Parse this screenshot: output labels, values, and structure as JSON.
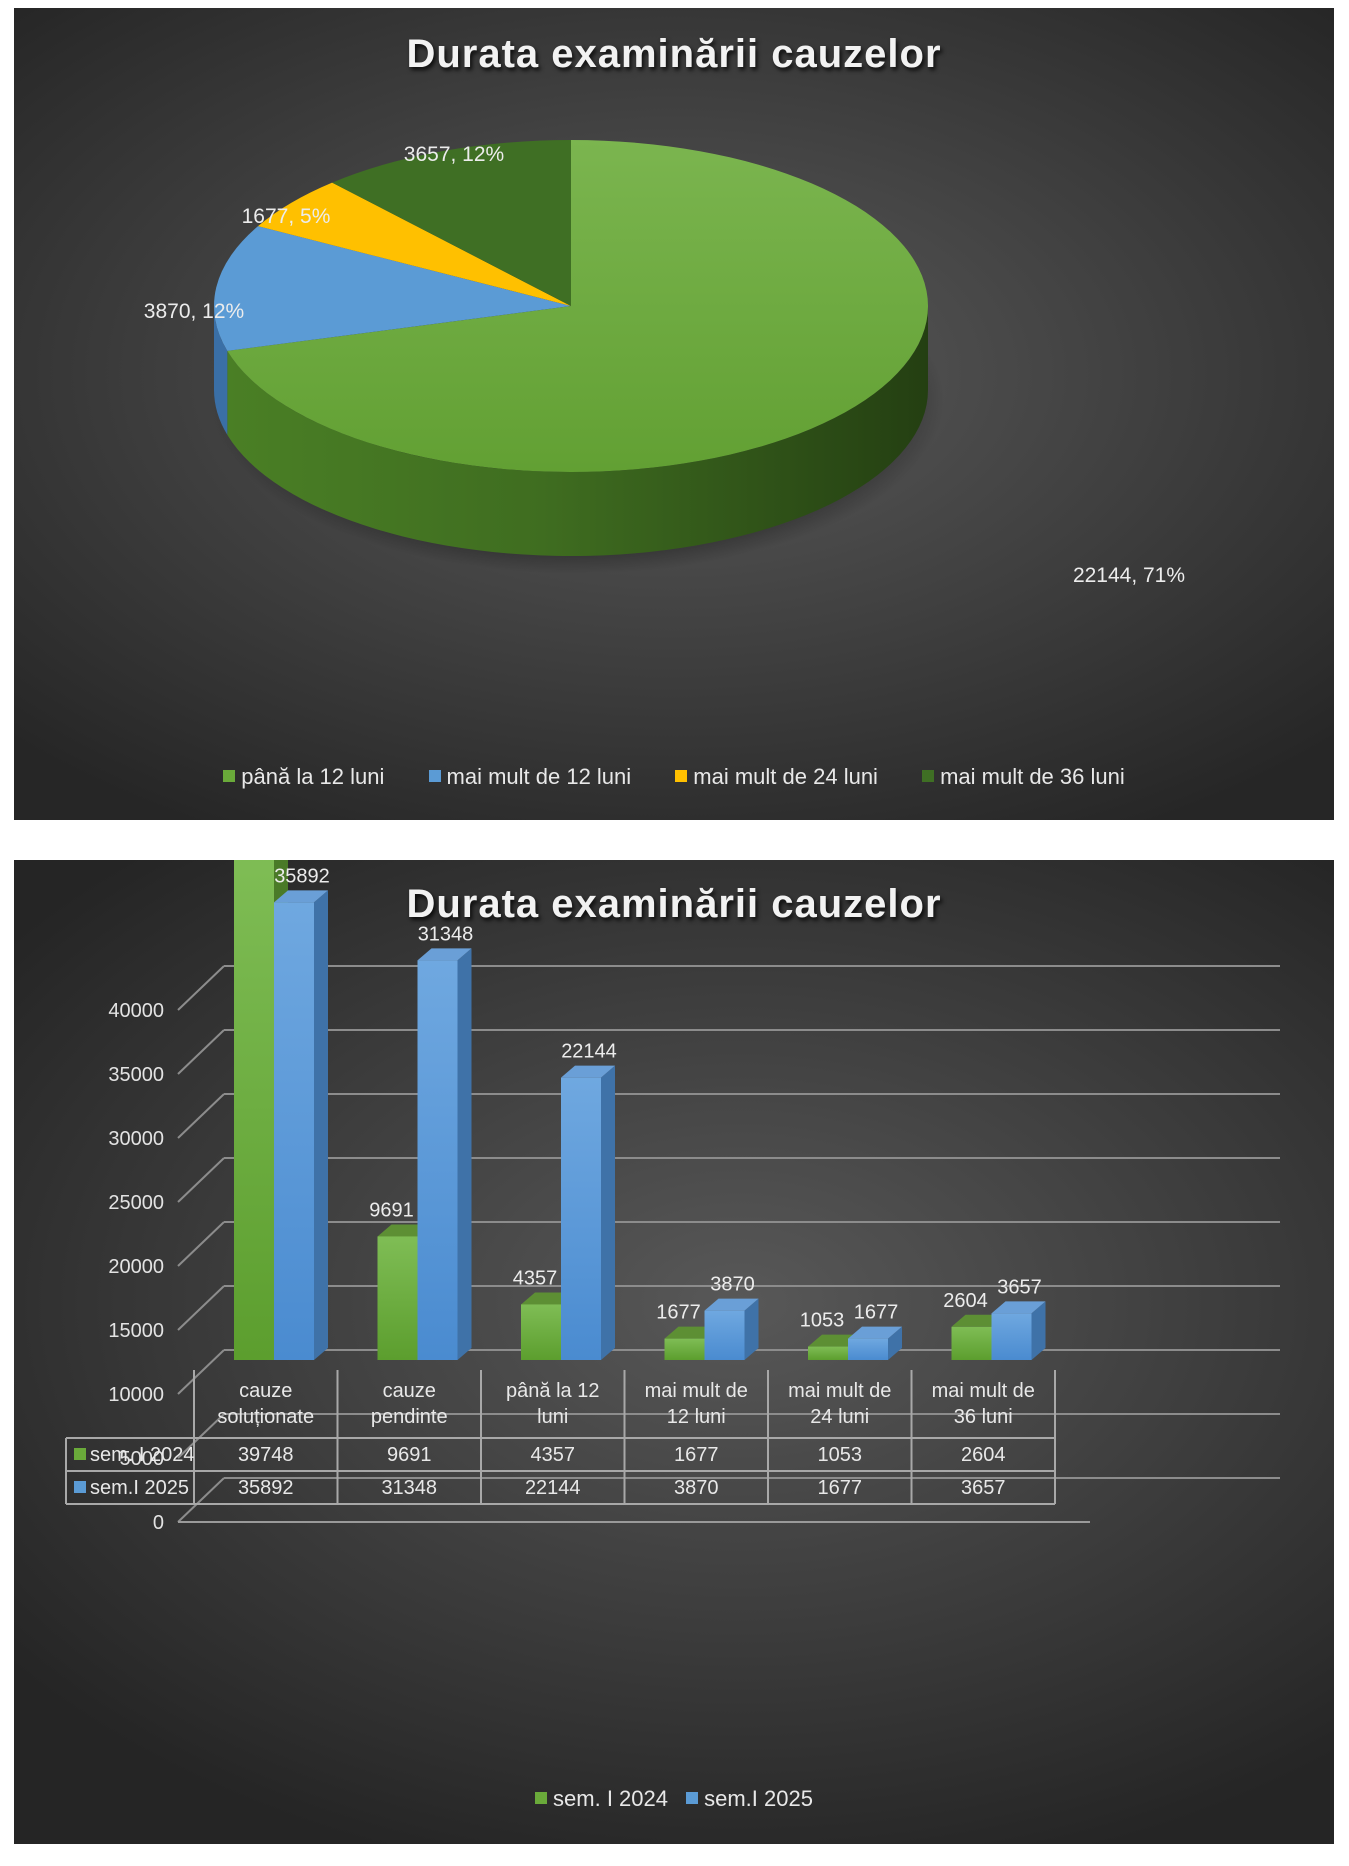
{
  "chart_data": [
    {
      "type": "pie",
      "title": "Durata examinării cauzelor",
      "categories": [
        "până la 12 luni",
        "mai mult de 12 luni",
        "mai mult de 24 luni",
        "mai mult de 36 luni"
      ],
      "values": [
        22144,
        3870,
        1677,
        3657
      ],
      "data_labels": [
        "22144, 71%",
        "3870, 12%",
        "1677, 5%",
        "3657, 12%"
      ],
      "colors": [
        "#6aaa3a",
        "#5b9bd5",
        "#ffc000",
        "#3f6f24"
      ],
      "legend_position": "bottom"
    },
    {
      "type": "bar",
      "title": "Durata examinării cauzelor",
      "categories": [
        "cauze soluționate",
        "cauze pendinte",
        "până la 12 luni",
        "mai mult de 12 luni",
        "mai mult de 24 luni",
        "mai mult de 36 luni"
      ],
      "series": [
        {
          "name": "sem. I 2024",
          "values": [
            39748,
            9691,
            4357,
            1677,
            1053,
            2604
          ],
          "color": "#6aaa3a"
        },
        {
          "name": "sem.I 2025",
          "values": [
            35892,
            31348,
            22144,
            3870,
            1677,
            3657
          ],
          "color": "#5b9bd5"
        }
      ],
      "yticks": [
        0,
        5000,
        10000,
        15000,
        20000,
        25000,
        30000,
        35000,
        40000
      ],
      "ylim": [
        0,
        40000
      ],
      "grid": true,
      "data_table": true,
      "legend_position": "bottom"
    }
  ]
}
